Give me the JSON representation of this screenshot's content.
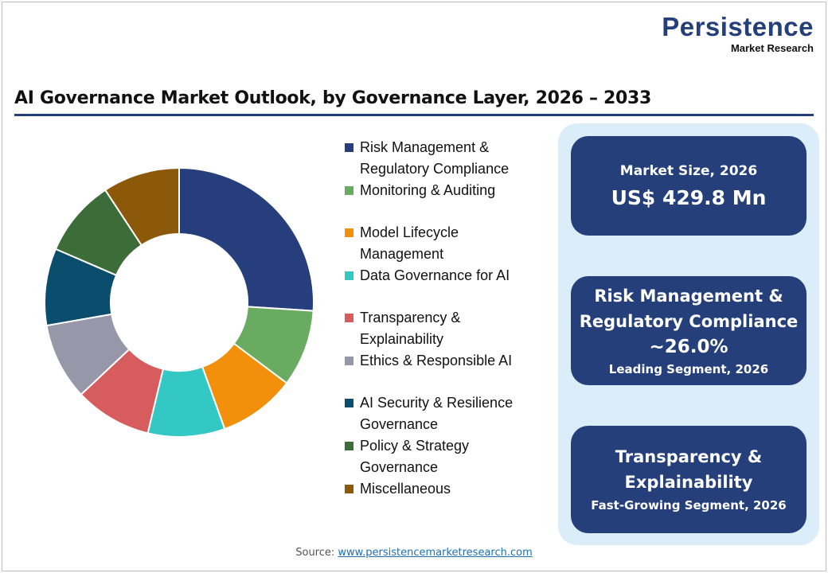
{
  "logo": {
    "name": "Persistence",
    "sub": "Market Research"
  },
  "chart_data": {
    "type": "pie",
    "title": "AI Governance Market Outlook, by Governance Layer, 2026 – 2033",
    "categories": [
      "Risk Management & Regulatory Compliance",
      "Monitoring & Auditing",
      "Model Lifecycle Management",
      "Data Governance for AI",
      "Transparency & Explainability",
      "Ethics & Responsible AI",
      "AI Security & Resilience Governance",
      "Policy & Strategy Governance",
      "Miscellaneous"
    ],
    "values": [
      26,
      9.25,
      9.25,
      9.25,
      9.25,
      9.25,
      9.25,
      9.25,
      9.25
    ],
    "colors": [
      "#263f7c",
      "#6aab62",
      "#f2900c",
      "#33c8c4",
      "#d75c5e",
      "#9896a9",
      "#0b4d6c",
      "#3c6d39",
      "#8c590b"
    ],
    "donut": true,
    "legend": "right"
  },
  "legend_lines": [
    [
      "Risk Management &",
      "Regulatory Compliance"
    ],
    [
      "Monitoring & Auditing"
    ],
    [
      "Model Lifecycle",
      "Management"
    ],
    [
      "Data Governance for AI"
    ],
    [
      "Transparency &",
      "Explainability"
    ],
    [
      "Ethics & Responsible AI"
    ],
    [
      "AI Security & Resilience",
      "Governance"
    ],
    [
      "Policy & Strategy",
      "Governance"
    ],
    [
      "Miscellaneous"
    ]
  ],
  "cards": {
    "market": {
      "label": "Market Size, 2026",
      "value": "US$ 429.8 Mn"
    },
    "leading": {
      "line1": "Risk Management &",
      "line2": "Regulatory Compliance",
      "value": "~26.0%",
      "label": "Leading Segment, 2026"
    },
    "fast": {
      "line1": "Transparency &",
      "line2": "Explainability",
      "label": "Fast-Growing Segment, 2026"
    }
  },
  "source": {
    "label": "Source:",
    "link": "www.persistencemarketresearch.com"
  }
}
